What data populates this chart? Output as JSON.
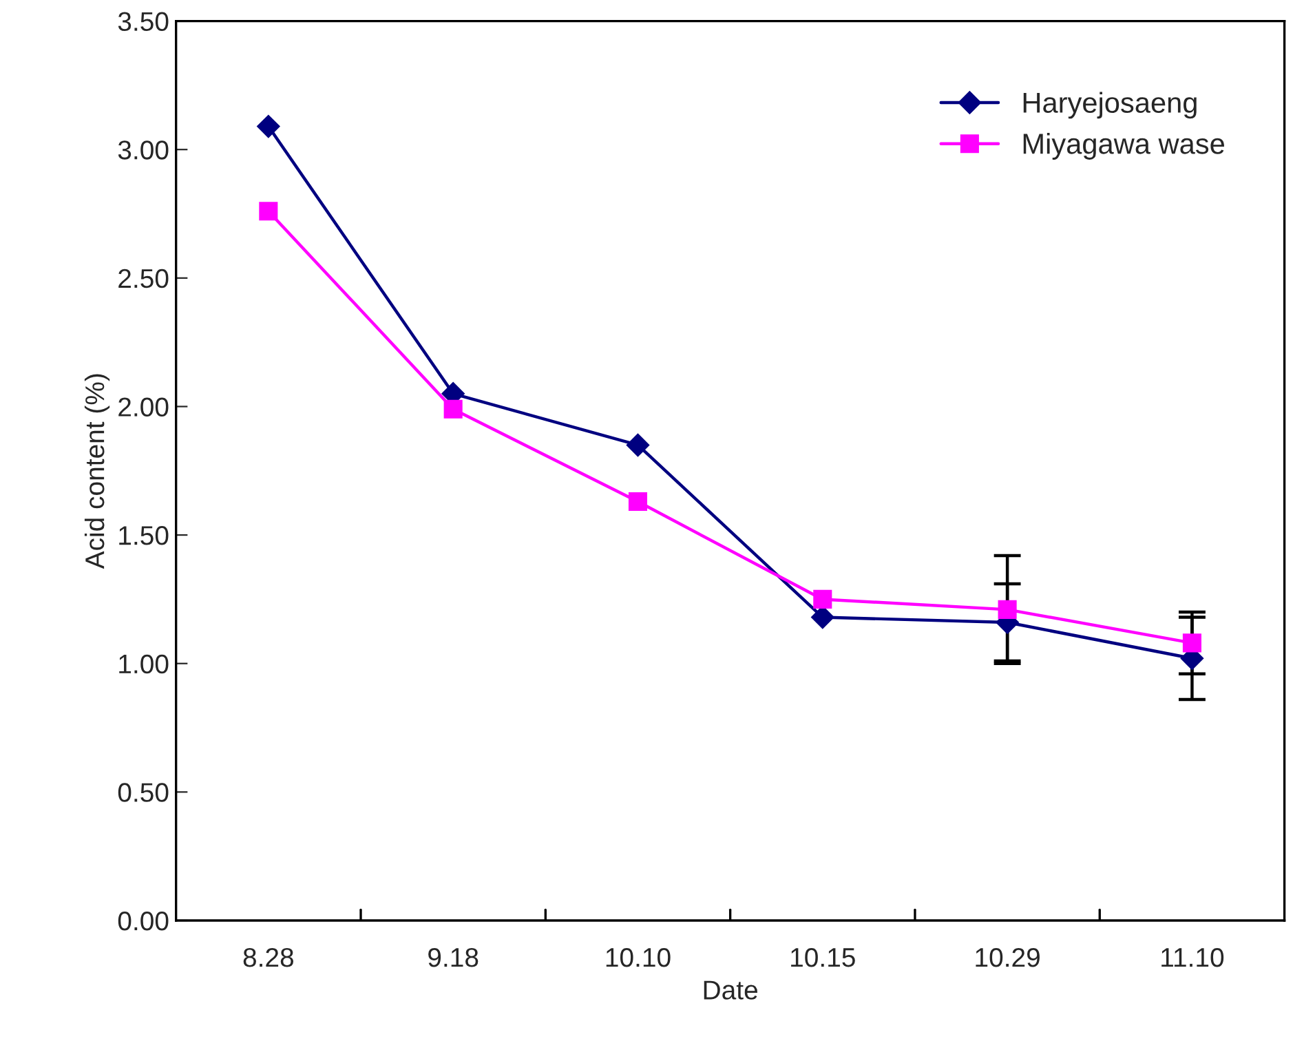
{
  "chart_data": {
    "type": "line",
    "xlabel": "Date",
    "ylabel": "Acid content (%)",
    "categories": [
      "8.28",
      "9.18",
      "10.10",
      "10.15",
      "10.29",
      "11.10"
    ],
    "series": [
      {
        "name": "Haryejosaeng",
        "color": "#000080",
        "marker": "diamond",
        "values": [
          3.09,
          2.05,
          1.85,
          1.18,
          1.16,
          1.02
        ],
        "errors": [
          null,
          null,
          null,
          null,
          0.15,
          0.16
        ]
      },
      {
        "name": "Miyagawa wase",
        "color": "#ff00ff",
        "marker": "square",
        "values": [
          2.76,
          1.99,
          1.63,
          1.25,
          1.21,
          1.08
        ],
        "errors": [
          null,
          null,
          null,
          null,
          0.21,
          0.12
        ]
      }
    ],
    "ylim": [
      0,
      3.5
    ],
    "yticks": [
      {
        "value": 0,
        "label": "0.00"
      },
      {
        "value": 0.5,
        "label": "0.50"
      },
      {
        "value": 1,
        "label": "1.00"
      },
      {
        "value": 1.5,
        "label": "1.50"
      },
      {
        "value": 2,
        "label": "2.00"
      },
      {
        "value": 2.5,
        "label": "2.50"
      },
      {
        "value": 3,
        "label": "3.00"
      },
      {
        "value": 3.5,
        "label": "3.50"
      }
    ],
    "legend": "top right",
    "grid": false
  }
}
